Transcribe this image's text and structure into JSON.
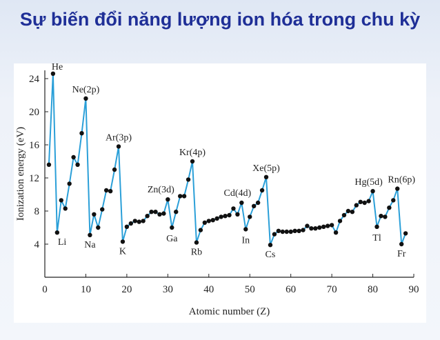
{
  "slide": {
    "title": "Sự biến đổi năng lượng ion hóa trong chu kỳ"
  },
  "chart_data": {
    "type": "line",
    "xlabel": "Atomic number (Z)",
    "ylabel": "Ionization energy (eV)",
    "xlim": [
      0,
      90
    ],
    "ylim": [
      0,
      25
    ],
    "xticks": [
      0,
      10,
      20,
      30,
      40,
      50,
      60,
      70,
      80,
      90
    ],
    "yticks": [
      4,
      8,
      12,
      16,
      20,
      24
    ],
    "grid": false,
    "line_color": "#2a9fd8",
    "marker_color": "#111111",
    "series": [
      {
        "x": [
          1,
          2,
          3,
          4,
          5,
          6,
          7,
          8,
          9,
          10,
          11,
          12,
          13,
          14,
          15,
          16,
          17,
          18,
          19,
          20,
          21,
          22,
          23,
          24,
          25,
          26,
          27,
          28,
          29,
          30,
          31,
          32,
          33,
          34,
          35,
          36,
          37,
          38,
          39,
          40,
          41,
          42,
          43,
          44,
          45,
          46,
          47,
          48,
          49,
          50,
          51,
          52,
          53,
          54,
          55,
          56,
          57,
          58,
          59,
          60,
          61,
          62,
          63,
          64,
          65,
          66,
          67,
          68,
          69,
          70,
          71,
          72,
          73,
          74,
          75,
          76,
          77,
          78,
          79,
          80,
          81,
          82,
          83,
          84,
          85,
          86,
          87,
          88
        ],
        "values": [
          13.6,
          24.6,
          5.4,
          9.3,
          8.3,
          11.3,
          14.5,
          13.6,
          17.4,
          21.6,
          5.1,
          7.6,
          6.0,
          8.2,
          10.5,
          10.4,
          13.0,
          15.8,
          4.3,
          6.1,
          6.5,
          6.8,
          6.7,
          6.8,
          7.4,
          7.9,
          7.9,
          7.6,
          7.7,
          9.4,
          6.0,
          7.9,
          9.8,
          9.8,
          11.8,
          14.0,
          4.2,
          5.7,
          6.6,
          6.8,
          6.9,
          7.1,
          7.3,
          7.4,
          7.5,
          8.3,
          7.6,
          9.0,
          5.8,
          7.3,
          8.6,
          9.0,
          10.5,
          12.1,
          3.9,
          5.2,
          5.6,
          5.5,
          5.5,
          5.5,
          5.6,
          5.6,
          5.7,
          6.2,
          5.9,
          5.9,
          6.0,
          6.1,
          6.2,
          6.3,
          5.4,
          6.8,
          7.5,
          8.0,
          7.9,
          8.7,
          9.1,
          9.0,
          9.2,
          10.4,
          6.1,
          7.4,
          7.3,
          8.4,
          9.3,
          10.7,
          4.0,
          5.3
        ]
      }
    ],
    "annotations": [
      {
        "text": "He",
        "x": 2
      },
      {
        "text": "Ne(2p)",
        "x": 10
      },
      {
        "text": "Ar(3p)",
        "x": 18
      },
      {
        "text": "Kr(4p)",
        "x": 36
      },
      {
        "text": "Xe(5p)",
        "x": 54
      },
      {
        "text": "Rn(6p)",
        "x": 86
      },
      {
        "text": "Zn(3d)",
        "x": 30
      },
      {
        "text": "Cd(4d)",
        "x": 48
      },
      {
        "text": "Hg(5d)",
        "x": 80
      },
      {
        "text": "Li",
        "x": 3
      },
      {
        "text": "Na",
        "x": 11
      },
      {
        "text": "K",
        "x": 19
      },
      {
        "text": "Rb",
        "x": 37
      },
      {
        "text": "Cs",
        "x": 55
      },
      {
        "text": "Fr",
        "x": 87
      },
      {
        "text": "Ga",
        "x": 31
      },
      {
        "text": "In",
        "x": 49
      },
      {
        "text": "Tl",
        "x": 81
      }
    ]
  }
}
